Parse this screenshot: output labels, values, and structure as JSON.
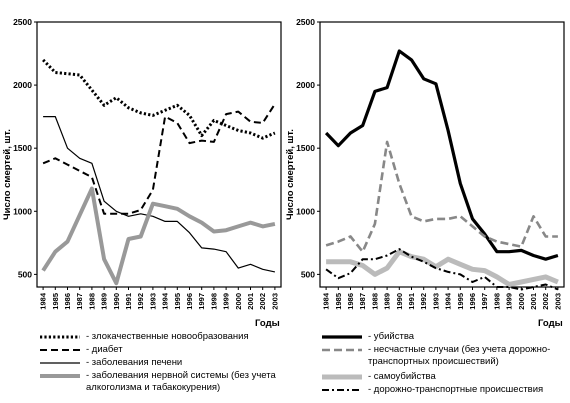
{
  "chart_data": [
    {
      "type": "line",
      "title": "",
      "ylabel": "Число смертей, шт.",
      "xlabel": "Годы",
      "ylim": [
        400,
        2500
      ],
      "yticks": [
        500,
        1000,
        1500,
        2000,
        2500
      ],
      "x": [
        "1984",
        "1985",
        "1986",
        "1987",
        "1988",
        "1989",
        "1990",
        "1991",
        "1992",
        "1993",
        "1994",
        "1995",
        "1996",
        "1997",
        "1998",
        "1999",
        "2000",
        "2001",
        "2002",
        "2003"
      ],
      "grid": false,
      "legend_position": "bottom",
      "series": [
        {
          "name": "- злокачественные новообразования",
          "style": "dotted",
          "values": [
            2200,
            2100,
            2090,
            2080,
            1960,
            1840,
            1900,
            1820,
            1780,
            1760,
            1800,
            1840,
            1760,
            1600,
            1720,
            1680,
            1640,
            1620,
            1580,
            1620
          ]
        },
        {
          "name": "- диабет",
          "style": "dashed",
          "values": [
            1380,
            1420,
            1370,
            1320,
            1270,
            980,
            980,
            980,
            1010,
            1170,
            1750,
            1700,
            1540,
            1560,
            1550,
            1770,
            1790,
            1710,
            1700,
            1850
          ]
        },
        {
          "name": "- заболевания печени",
          "style": "solid-thin",
          "values": [
            1750,
            1750,
            1500,
            1420,
            1380,
            1080,
            1000,
            960,
            980,
            960,
            920,
            920,
            830,
            710,
            700,
            680,
            550,
            580,
            540,
            520
          ]
        },
        {
          "name": "- заболевания нервной системы (без учета алкоголизма и табакокурения)",
          "style": "solid-thick-gray",
          "values": [
            530,
            680,
            760,
            970,
            1180,
            620,
            430,
            780,
            800,
            1060,
            1040,
            1020,
            960,
            910,
            840,
            850,
            880,
            910,
            880,
            900
          ]
        }
      ]
    },
    {
      "type": "line",
      "title": "",
      "ylabel": "Число смертей, шт.",
      "xlabel": "Годы",
      "ylim": [
        400,
        2500
      ],
      "yticks": [
        500,
        1000,
        1500,
        2000,
        2500
      ],
      "x": [
        "1984",
        "1985",
        "1986",
        "1987",
        "1988",
        "1989",
        "1990",
        "1991",
        "1992",
        "1993",
        "1994",
        "1995",
        "1996",
        "1997",
        "1998",
        "1999",
        "2000",
        "2001",
        "2002",
        "2003"
      ],
      "grid": false,
      "legend_position": "bottom",
      "series": [
        {
          "name": "- убийства",
          "style": "solid-thick-black",
          "values": [
            1620,
            1520,
            1620,
            1680,
            1950,
            1980,
            2270,
            2200,
            2050,
            2010,
            1640,
            1220,
            940,
            820,
            680,
            680,
            690,
            650,
            620,
            650
          ]
        },
        {
          "name": "- несчастные случаи (без учета дорожно-транспортных происшествий)",
          "style": "dashed-gray",
          "values": [
            730,
            760,
            800,
            680,
            900,
            1550,
            1220,
            960,
            920,
            940,
            940,
            960,
            880,
            800,
            760,
            740,
            720,
            960,
            800,
            800
          ]
        },
        {
          "name": "- самоубийства",
          "style": "solid-thick-lightgray",
          "values": [
            600,
            600,
            600,
            570,
            500,
            550,
            680,
            640,
            620,
            560,
            620,
            580,
            540,
            530,
            480,
            420,
            440,
            460,
            480,
            440
          ]
        },
        {
          "name": "- дорожно-транспортные происшествия",
          "style": "dashdot",
          "values": [
            540,
            470,
            510,
            620,
            620,
            650,
            700,
            640,
            600,
            550,
            520,
            500,
            440,
            480,
            400,
            400,
            380,
            400,
            420,
            380
          ]
        }
      ]
    }
  ]
}
